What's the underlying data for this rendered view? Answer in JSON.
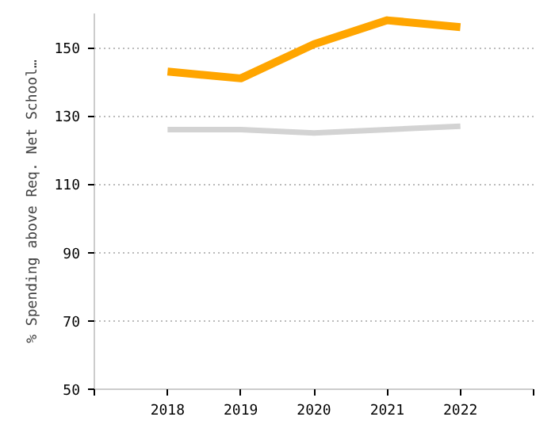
{
  "chart_data": {
    "type": "line",
    "ylabel": "% Spending above Req. Net School…",
    "x": [
      2018,
      2019,
      2020,
      2021,
      2022
    ],
    "series": [
      {
        "color": "#ffa500",
        "values": [
          143,
          141,
          151,
          158,
          156
        ]
      },
      {
        "color": "#d3d3d3",
        "values": [
          126,
          126,
          125,
          126,
          127
        ]
      }
    ],
    "xlim": [
      2017,
      2023
    ],
    "xticks": [
      {
        "value": 2017,
        "label": null
      },
      2018,
      2019,
      2020,
      2021,
      2022,
      {
        "value": 2023,
        "label": null
      }
    ],
    "ylim": [
      50,
      160
    ],
    "yticks": [
      50,
      70,
      90,
      110,
      130,
      150
    ],
    "grid": "y",
    "marker": "none",
    "line_style": "solid"
  }
}
